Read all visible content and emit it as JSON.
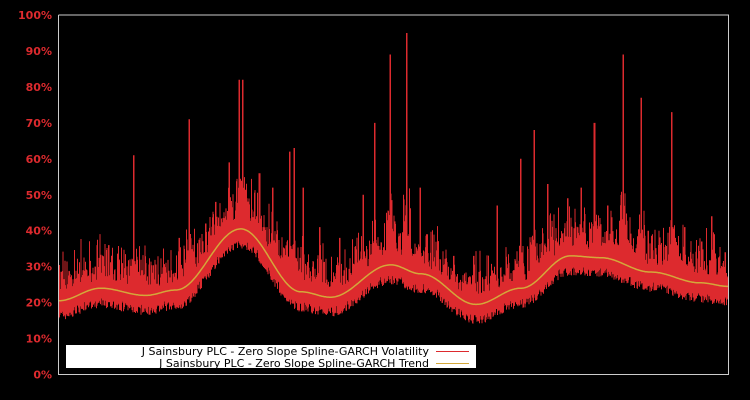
{
  "chart_data": {
    "type": "line",
    "title": "",
    "xlabel": "",
    "ylabel": "",
    "ylim": [
      0,
      100
    ],
    "yticks": [
      "0%",
      "10%",
      "20%",
      "30%",
      "40%",
      "50%",
      "60%",
      "70%",
      "80%",
      "90%",
      "100%"
    ],
    "grid": false,
    "legend_position": "lower-left inside plot",
    "colors": {
      "background": "#000000",
      "axis": "#cccccc",
      "tick_text": "#dd2a2e",
      "volatility": "#dd2a2e",
      "trend": "#d4a83a",
      "legend_bg": "#ffffff"
    },
    "series": [
      {
        "name": "J Sainsbury PLC - Zero Slope Spline-GARCH Volatility",
        "note": "daily volatility; x is fraction of time span (0..1)",
        "baseline_floor_offset": -4,
        "spikes": [
          {
            "x": 0.03,
            "y": 28
          },
          {
            "x": 0.055,
            "y": 30
          },
          {
            "x": 0.075,
            "y": 36
          },
          {
            "x": 0.095,
            "y": 31
          },
          {
            "x": 0.11,
            "y": 32
          },
          {
            "x": 0.112,
            "y": 61
          },
          {
            "x": 0.13,
            "y": 31
          },
          {
            "x": 0.18,
            "y": 38
          },
          {
            "x": 0.195,
            "y": 71
          },
          {
            "x": 0.22,
            "y": 42
          },
          {
            "x": 0.235,
            "y": 48
          },
          {
            "x": 0.255,
            "y": 59
          },
          {
            "x": 0.27,
            "y": 82
          },
          {
            "x": 0.275,
            "y": 82
          },
          {
            "x": 0.3,
            "y": 56
          },
          {
            "x": 0.32,
            "y": 52
          },
          {
            "x": 0.345,
            "y": 62
          },
          {
            "x": 0.352,
            "y": 63
          },
          {
            "x": 0.365,
            "y": 52
          },
          {
            "x": 0.39,
            "y": 41
          },
          {
            "x": 0.42,
            "y": 38
          },
          {
            "x": 0.455,
            "y": 50
          },
          {
            "x": 0.472,
            "y": 70
          },
          {
            "x": 0.495,
            "y": 89
          },
          {
            "x": 0.52,
            "y": 95
          },
          {
            "x": 0.54,
            "y": 52
          },
          {
            "x": 0.55,
            "y": 39
          },
          {
            "x": 0.59,
            "y": 33
          },
          {
            "x": 0.62,
            "y": 33
          },
          {
            "x": 0.655,
            "y": 47
          },
          {
            "x": 0.69,
            "y": 60
          },
          {
            "x": 0.71,
            "y": 68
          },
          {
            "x": 0.73,
            "y": 53
          },
          {
            "x": 0.76,
            "y": 49
          },
          {
            "x": 0.78,
            "y": 52
          },
          {
            "x": 0.8,
            "y": 70
          },
          {
            "x": 0.82,
            "y": 47
          },
          {
            "x": 0.843,
            "y": 89
          },
          {
            "x": 0.87,
            "y": 77
          },
          {
            "x": 0.88,
            "y": 40
          },
          {
            "x": 0.915,
            "y": 73
          },
          {
            "x": 0.935,
            "y": 41
          },
          {
            "x": 0.96,
            "y": 37
          },
          {
            "x": 0.975,
            "y": 44
          },
          {
            "x": 0.995,
            "y": 34
          }
        ]
      },
      {
        "name": "J Sainsbury PLC - Zero Slope Spline-GARCH Trend",
        "x": [
          0.0,
          0.063,
          0.13,
          0.175,
          0.272,
          0.362,
          0.406,
          0.496,
          0.541,
          0.623,
          0.69,
          0.764,
          0.809,
          0.884,
          0.958,
          1.0
        ],
        "values": [
          20.5,
          24,
          22,
          23.5,
          40.5,
          23,
          21.5,
          30.5,
          28,
          19.5,
          24,
          33,
          32.5,
          28.5,
          25.5,
          24.5
        ]
      }
    ]
  },
  "legend": {
    "items": [
      {
        "label": "J Sainsbury PLC - Zero Slope Spline-GARCH Volatility",
        "color": "#dd2a2e"
      },
      {
        "label": "J Sainsbury PLC - Zero Slope Spline-GARCH Trend",
        "color": "#d4a83a"
      }
    ]
  }
}
